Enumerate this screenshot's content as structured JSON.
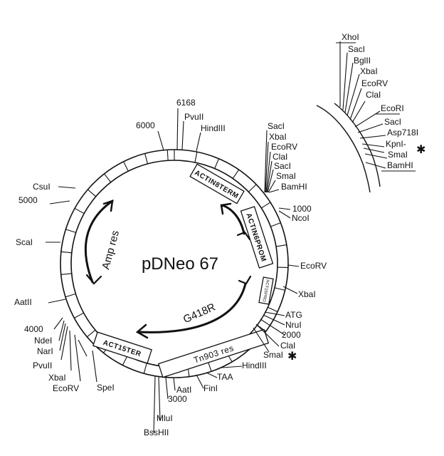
{
  "plasmid": {
    "name": "pDNeo 67"
  },
  "genes": {
    "amp": "Amp res",
    "g418": "G418R"
  },
  "features": {
    "actin8term": "ACTIN8TERM",
    "actin6prom": "ACTIN6PROM",
    "act15ter": "ACT15TER",
    "tn903": "Tn903 res",
    "small_box": "ACT15PRO"
  },
  "positions": {
    "p6168": "6168",
    "p6000": "6000",
    "p5000": "5000",
    "p4000": "4000",
    "p3000": "3000",
    "p2000": "2000",
    "p1000": "1000"
  },
  "sites": {
    "pvuii_top": "PvuII",
    "hindiii_top": "HindIII",
    "saci_1": "SacI",
    "xbai_1": "XbaI",
    "ecorv_1": "EcoRV",
    "clai_1": "ClaI",
    "saci_2": "SacI",
    "smai_1": "SmaI",
    "bamhi_1": "BamHI",
    "ncoi": "NcoI",
    "ecorv_right": "EcoRV",
    "xbai_right": "XbaI",
    "atg": "ATG",
    "nrui": "NruI",
    "clai_2": "ClaI",
    "smai_2": "SmaI",
    "hindiii_bottom": "HindIII",
    "taa": "TAA",
    "fini": "FinI",
    "aati_bottom": "AatI",
    "mlui": "MluI",
    "bsshii": "BssHII",
    "spei": "SpeI",
    "ecorv_left": "EcoRV",
    "xbai_left": "XbaI",
    "pvuii_left": "PvuII",
    "nari": "NarI",
    "ndei": "NdeI",
    "aatii": "AatII",
    "scai": "ScaI",
    "csui": "CsuI"
  },
  "inset": {
    "xhoi": "XhoI",
    "saci_a": "SacI",
    "bglii": "BglII",
    "xbai": "XbaI",
    "ecorv": "EcoRV",
    "clai_a": "ClaI",
    "ecori": "EcoRI",
    "saci_b": "SacI",
    "asp718i": "Asp718I",
    "kpni": "KpnI-",
    "smai": "SmaI",
    "bamhi": "BamHI"
  },
  "marks": {
    "star": "✱"
  }
}
